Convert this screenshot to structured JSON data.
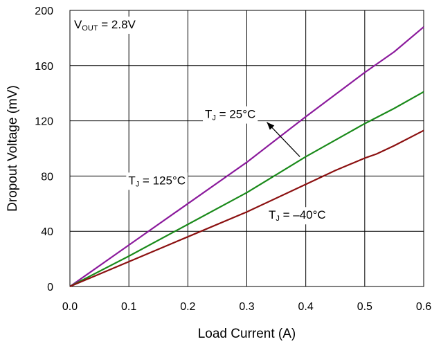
{
  "chart_data": {
    "type": "line",
    "xlabel": "Load Current (A)",
    "ylabel": "Dropout Voltage (mV)",
    "xlim": [
      0,
      0.6
    ],
    "ylim": [
      0,
      200
    ],
    "xticks": [
      0.0,
      0.1,
      0.2,
      0.3,
      0.4,
      0.5,
      0.6
    ],
    "yticks": [
      0,
      40,
      80,
      120,
      160,
      200
    ],
    "xtick_labels": [
      "0.0",
      "0.1",
      "0.2",
      "0.3",
      "0.4",
      "0.5",
      "0.6"
    ],
    "ytick_labels": [
      "0",
      "40",
      "80",
      "120",
      "160",
      "200"
    ],
    "grid": true,
    "annotations": {
      "vout": {
        "main": "V",
        "sub": "OUT",
        "rest": " = 2.8V"
      },
      "tj125": {
        "main": "T",
        "sub": "J",
        "rest": " = 125°C"
      },
      "tj25": {
        "main": "T",
        "sub": "J",
        "rest": " = 25°C"
      },
      "tjm40": {
        "main": "T",
        "sub": "J",
        "rest": " = –40°C"
      }
    },
    "series": [
      {
        "id": "tj125",
        "color": "#8b1a9c",
        "x": [
          0,
          0.1,
          0.2,
          0.3,
          0.4,
          0.5,
          0.55,
          0.6
        ],
        "y": [
          0,
          30,
          60,
          90,
          123,
          155,
          170,
          188
        ]
      },
      {
        "id": "tj25",
        "color": "#1a8a1a",
        "x": [
          0,
          0.1,
          0.2,
          0.3,
          0.35,
          0.4,
          0.5,
          0.55,
          0.6
        ],
        "y": [
          0,
          22,
          45,
          68,
          81,
          94,
          118,
          129,
          141
        ]
      },
      {
        "id": "tjm40",
        "color": "#8b1010",
        "x": [
          0,
          0.1,
          0.2,
          0.3,
          0.4,
          0.45,
          0.5,
          0.52,
          0.55,
          0.6
        ],
        "y": [
          0,
          18,
          36,
          54,
          74,
          84,
          93,
          96,
          102,
          113
        ]
      }
    ]
  }
}
